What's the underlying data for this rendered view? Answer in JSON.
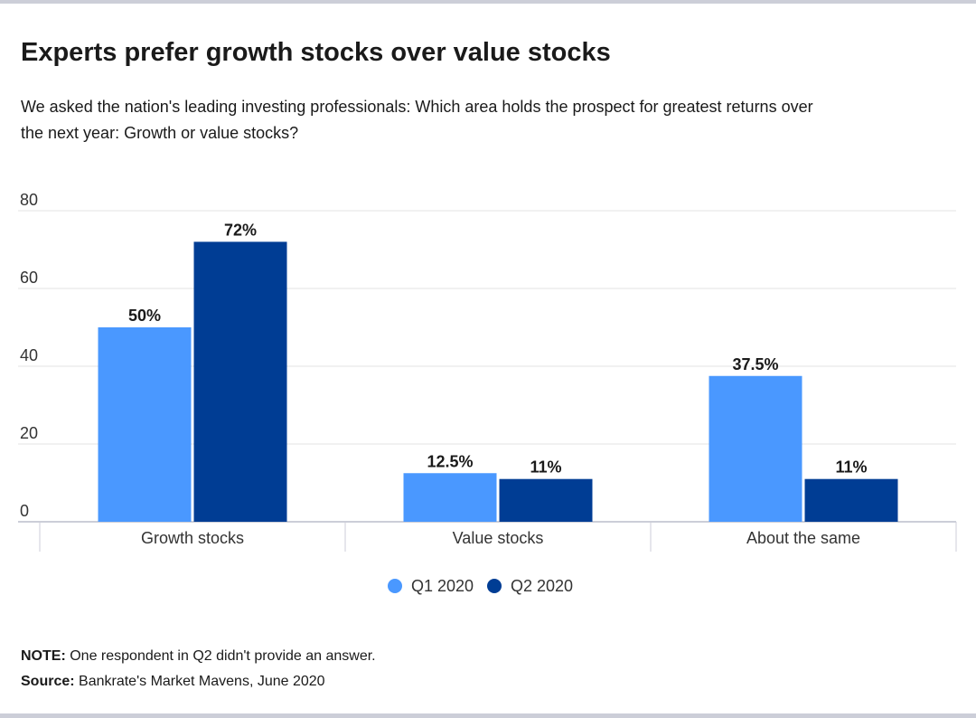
{
  "chart_data": {
    "type": "bar",
    "title": "Experts prefer growth stocks over value stocks",
    "subtitle": "We asked the nation's leading investing professionals: Which area holds the prospect for greatest returns over the next year: Growth or value stocks?",
    "categories": [
      "Growth stocks",
      "Value stocks",
      "About the same"
    ],
    "series": [
      {
        "name": "Q1 2020",
        "color": "#4a98ff",
        "values": [
          50,
          12.5,
          37.5
        ],
        "labels": [
          "50%",
          "12.5%",
          "37.5%"
        ]
      },
      {
        "name": "Q2 2020",
        "color": "#003d94",
        "values": [
          72,
          11,
          11
        ],
        "labels": [
          "72%",
          "11%",
          "11%"
        ]
      }
    ],
    "ylim": [
      0,
      80
    ],
    "yticks": [
      "0",
      "20",
      "40",
      "60",
      "80"
    ],
    "grid": true,
    "legend": "bottom-center"
  },
  "footer": {
    "note_label": "NOTE:",
    "note_text": "One respondent in Q2 didn't provide an answer.",
    "source_label": "Source:",
    "source_text": "Bankrate's Market Mavens, June 2020"
  }
}
